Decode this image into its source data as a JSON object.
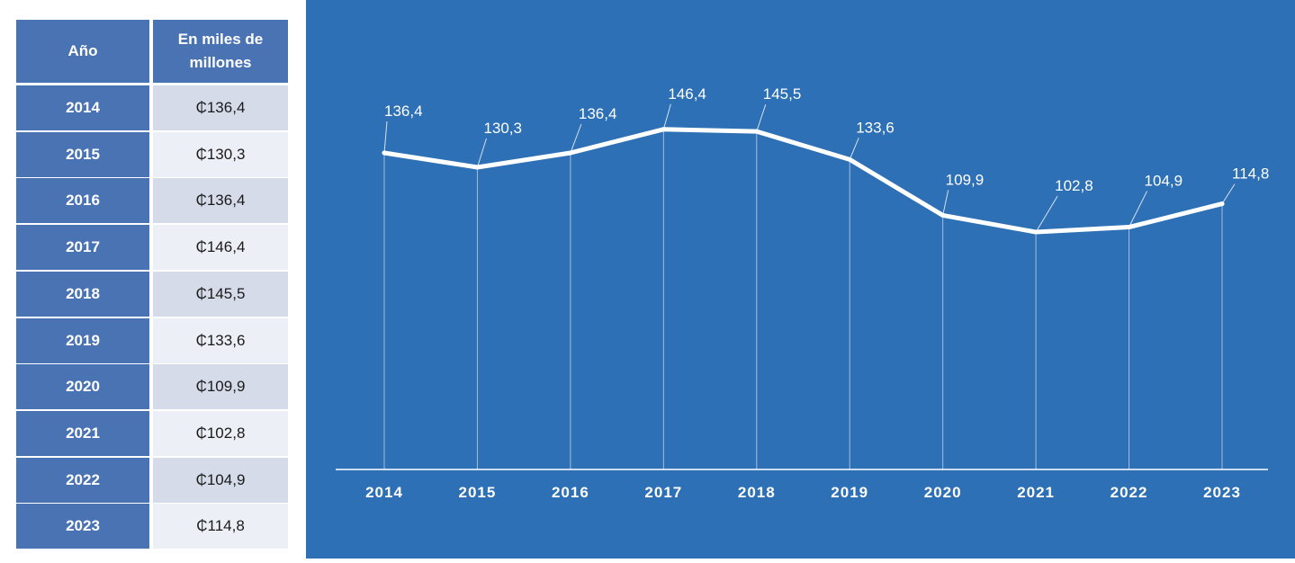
{
  "table": {
    "header_year": "Año",
    "header_value": "En miles de millones",
    "rows": [
      {
        "year": "2014",
        "value": "₵136,4"
      },
      {
        "year": "2015",
        "value": "₵130,3"
      },
      {
        "year": "2016",
        "value": "₵136,4"
      },
      {
        "year": "2017",
        "value": "₵146,4"
      },
      {
        "year": "2018",
        "value": "₵145,5"
      },
      {
        "year": "2019",
        "value": "₵133,6"
      },
      {
        "year": "2020",
        "value": "₵109,9"
      },
      {
        "year": "2021",
        "value": "₵102,8"
      },
      {
        "year": "2022",
        "value": "₵104,9"
      },
      {
        "year": "2023",
        "value": "₵114,8"
      }
    ]
  },
  "colors": {
    "header_bg": "#4a73b3",
    "row_light": "#d5dbe9",
    "row_lighter": "#eceff5",
    "chart_bg": "#2e70b5",
    "line": "#ffffff"
  },
  "chart_data": {
    "type": "line",
    "categories": [
      "2014",
      "2015",
      "2016",
      "2017",
      "2018",
      "2019",
      "2020",
      "2021",
      "2022",
      "2023"
    ],
    "values": [
      136.4,
      130.3,
      136.4,
      146.4,
      145.5,
      133.6,
      109.9,
      102.8,
      104.9,
      114.8
    ],
    "data_labels": [
      "136,4",
      "130,3",
      "136,4",
      "146,4",
      "145,5",
      "133,6",
      "109,9",
      "102,8",
      "104,9",
      "114,8"
    ],
    "title": "",
    "xlabel": "",
    "ylabel": "",
    "ylim": [
      0,
      160
    ],
    "grid": false,
    "legend": "none"
  }
}
